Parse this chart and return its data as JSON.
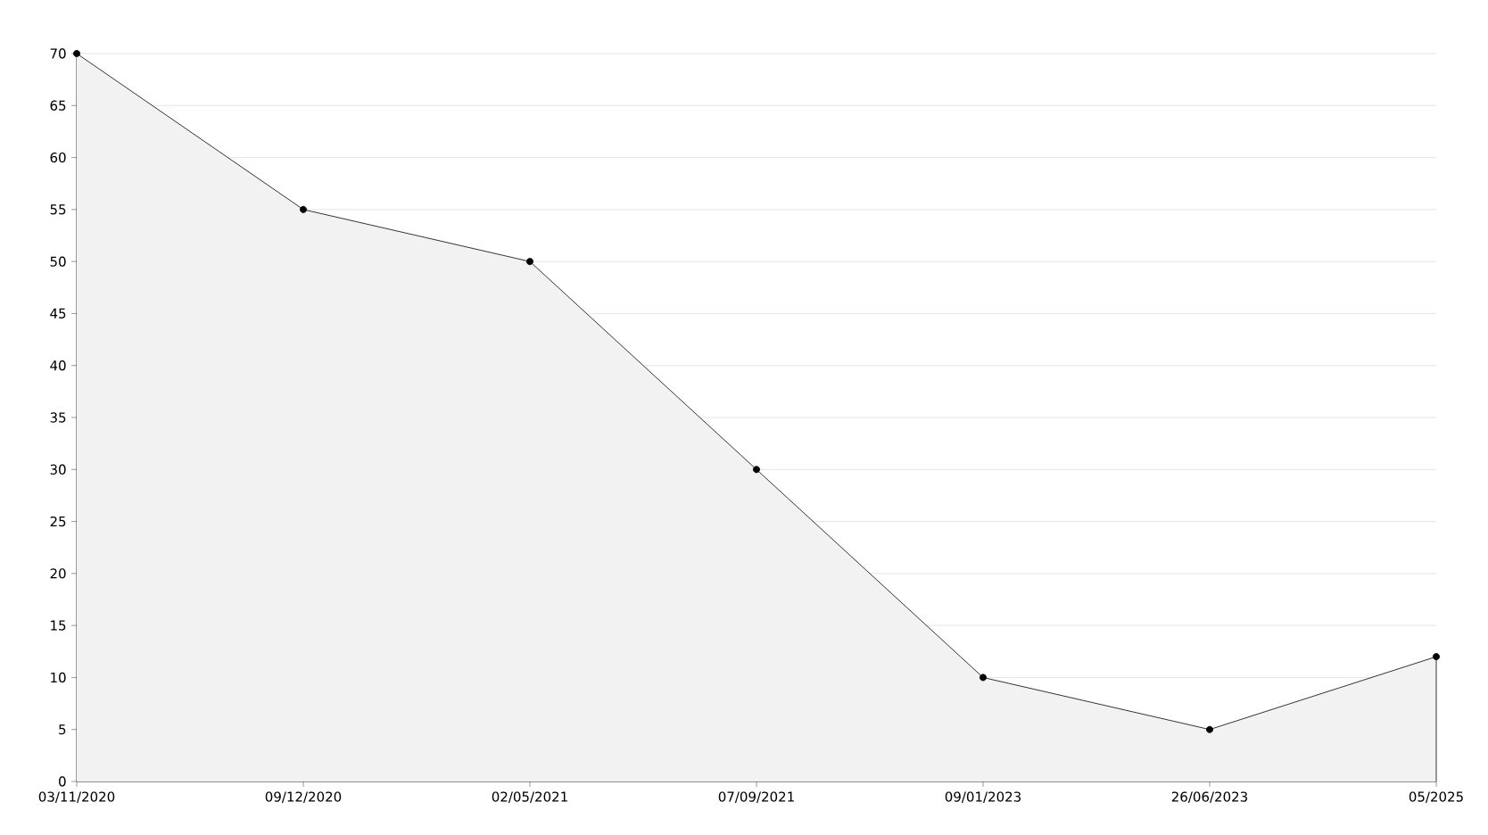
{
  "chart_data": {
    "type": "area",
    "categories": [
      "03/11/2020",
      "09/12/2020",
      "02/05/2021",
      "07/09/2021",
      "09/01/2023",
      "26/06/2023",
      "05/2025"
    ],
    "values": [
      70,
      55,
      50,
      30,
      10,
      5,
      12
    ],
    "color": "#000000",
    "ylim": [
      0,
      70
    ],
    "yticks": [
      0,
      5,
      10,
      15,
      20,
      25,
      30,
      35,
      40,
      45,
      50,
      55,
      60,
      65,
      70
    ],
    "grid": "y",
    "marker": "circle"
  }
}
